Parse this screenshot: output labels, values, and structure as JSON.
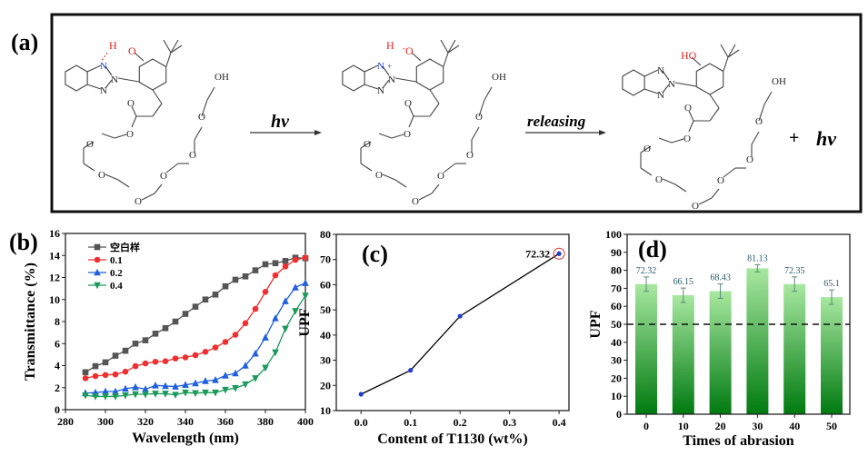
{
  "panel_a": {
    "label": "(a)",
    "arrow1_label": "hv",
    "arrow2_label": "releasing",
    "plus": "+",
    "product_label": "hv",
    "molecules": [
      {
        "H": "H",
        "O": "O",
        "N_top": "N",
        "N_mid": "N",
        "N_bot": "N",
        "OH": "OH",
        "O_carbonyl": "O",
        "O_chain": "O",
        "charge_N": "",
        "charge_O": ""
      },
      {
        "H": "H",
        "O": "O",
        "N_top": "N",
        "N_mid": "N",
        "N_bot": "N",
        "OH": "OH",
        "O_carbonyl": "O",
        "O_chain": "O",
        "charge_N": "+",
        "charge_O": "-"
      },
      {
        "H": "",
        "O": "HO",
        "N_top": "N",
        "N_mid": "N",
        "N_bot": "N",
        "OH": "OH",
        "O_carbonyl": "O",
        "O_chain": "O",
        "charge_N": "",
        "charge_O": ""
      }
    ],
    "colors": {
      "hydrogen_bond": "#e02020",
      "nitrogen": "#1a3fd0",
      "bond": "#444444"
    }
  },
  "chart_data": [
    {
      "panel": "(b)",
      "type": "line",
      "xlabel": "Wavelength (nm)",
      "ylabel": "Transmittance (%)",
      "xlim": [
        280,
        400
      ],
      "ylim": [
        0,
        16
      ],
      "xticks": [
        280,
        300,
        320,
        340,
        360,
        380,
        400
      ],
      "yticks": [
        0,
        2,
        4,
        6,
        8,
        10,
        12,
        14,
        16
      ],
      "grid": false,
      "legend": "top-left",
      "x": [
        290,
        295,
        300,
        305,
        310,
        315,
        320,
        325,
        330,
        335,
        340,
        345,
        350,
        355,
        360,
        365,
        370,
        375,
        380,
        385,
        390,
        395,
        400
      ],
      "series": [
        {
          "name": "空白样",
          "color": "#555555",
          "marker": "square",
          "values": [
            3.4,
            3.95,
            4.3,
            4.9,
            5.35,
            6.0,
            6.3,
            6.9,
            7.4,
            8.0,
            8.7,
            9.35,
            10.0,
            10.45,
            11.2,
            11.8,
            12.1,
            12.65,
            13.2,
            13.3,
            13.5,
            13.8,
            13.75
          ]
        },
        {
          "name": "0.1",
          "color": "#f03030",
          "marker": "circle",
          "values": [
            2.85,
            3.05,
            3.15,
            3.2,
            3.45,
            3.95,
            4.2,
            4.35,
            4.4,
            4.65,
            4.75,
            4.95,
            5.25,
            5.65,
            6.15,
            6.8,
            7.85,
            9.15,
            10.7,
            12.2,
            13.0,
            13.6,
            13.8
          ]
        },
        {
          "name": "0.2",
          "color": "#1f5fe0",
          "marker": "triangle-up",
          "values": [
            1.5,
            1.55,
            1.65,
            1.65,
            1.9,
            2.05,
            1.85,
            2.2,
            2.15,
            2.1,
            2.25,
            2.4,
            2.6,
            2.7,
            3.1,
            3.3,
            4.0,
            5.1,
            6.55,
            8.3,
            9.85,
            11.1,
            11.5
          ]
        },
        {
          "name": "0.4",
          "color": "#1a9a5a",
          "marker": "triangle-down",
          "values": [
            1.3,
            1.2,
            1.2,
            1.2,
            1.3,
            1.4,
            1.4,
            1.45,
            1.45,
            1.35,
            1.55,
            1.5,
            1.55,
            1.55,
            1.8,
            1.95,
            2.3,
            2.85,
            3.8,
            5.2,
            7.35,
            8.95,
            10.35
          ]
        }
      ]
    },
    {
      "panel": "(c)",
      "type": "line",
      "xlabel": "Content of T1130 (wt%)",
      "ylabel": "UPF",
      "xlim": [
        -0.05,
        0.42
      ],
      "ylim": [
        10,
        80
      ],
      "xticks": [
        0.0,
        0.1,
        0.2,
        0.3,
        0.4
      ],
      "xtick_labels": [
        "0.0",
        "0.1",
        "0.2",
        "0.3",
        "0.4"
      ],
      "yticks": [
        10,
        20,
        30,
        40,
        50,
        60,
        70,
        80
      ],
      "grid": false,
      "x": [
        0.0,
        0.1,
        0.2,
        0.4
      ],
      "values": [
        16.5,
        26.0,
        47.5,
        72.32
      ],
      "line_color": "#000000",
      "marker_color": "#1f3fd0",
      "annotation": {
        "text": "72.32",
        "highlight_color": "#e03030"
      }
    },
    {
      "panel": "(d)",
      "type": "bar",
      "xlabel": "Times of abrasion",
      "ylabel": "UPF",
      "ylim": [
        0,
        100
      ],
      "yticks": [
        0,
        10,
        20,
        30,
        40,
        50,
        60,
        70,
        80,
        90,
        100
      ],
      "categories": [
        "0",
        "10",
        "20",
        "30",
        "40",
        "50"
      ],
      "values": [
        72.32,
        66.15,
        68.43,
        81.13,
        72.35,
        65.1
      ],
      "value_labels": [
        "72.32",
        "66.15",
        "68.43",
        "81.13",
        "72.35",
        "65.1"
      ],
      "errors": [
        4,
        4,
        4,
        2,
        4,
        4
      ],
      "reference_line": 50,
      "grid": false,
      "bar_gradient": [
        "#a8e8a0",
        "#007a10"
      ],
      "label_color": "#2a5a6a"
    }
  ]
}
